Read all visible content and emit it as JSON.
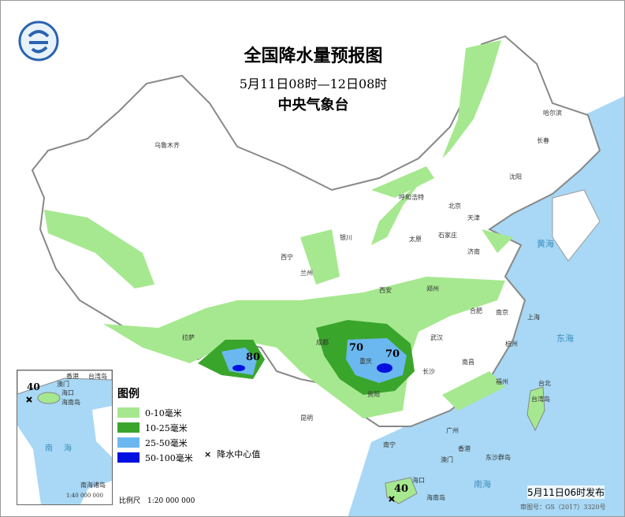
{
  "title": "全国降水量预报图",
  "period": "5月11日08时—12日08时",
  "agency": "中央气象台",
  "legend": {
    "title": "图例",
    "items": [
      {
        "label": "0-10毫米",
        "color": "#a6e88f"
      },
      {
        "label": "10-25毫米",
        "color": "#3aa52b"
      },
      {
        "label": "25-50毫米",
        "color": "#6bb8f0"
      },
      {
        "label": "50-100毫米",
        "color": "#0010e0"
      }
    ],
    "center_marker": "×",
    "center_label": "降水中心值"
  },
  "scale": "比例尺　1:20 000 000",
  "inset": {
    "labels": [
      "香港",
      "台湾岛",
      "澳门",
      "海口",
      "海南岛",
      "南海",
      "南海诸岛",
      "1:40 000 000"
    ],
    "value": "40"
  },
  "issued": "5月11日06时发布",
  "approval": "审图号：GS（2017）3320号",
  "rain_centers": [
    "80",
    "70",
    "70",
    "40"
  ],
  "cities": [
    "乌鲁木齐",
    "哈尔滨",
    "长春",
    "沈阳",
    "北京",
    "天津",
    "呼和浩特",
    "银川",
    "太原",
    "石家庄",
    "济南",
    "西宁",
    "兰州",
    "西安",
    "郑州",
    "合肥",
    "南京",
    "上海",
    "武汉",
    "杭州",
    "成都",
    "重庆",
    "贵阳",
    "长沙",
    "南昌",
    "福州",
    "台北",
    "昆明",
    "拉萨",
    "广州",
    "南宁",
    "海口",
    "香港",
    "澳门",
    "台湾岛",
    "海南岛",
    "东沙群岛",
    "南海",
    "黄海",
    "东海"
  ],
  "colors": {
    "sea": "#a8d8f5",
    "land": "#ffffff",
    "border": "#888888"
  }
}
